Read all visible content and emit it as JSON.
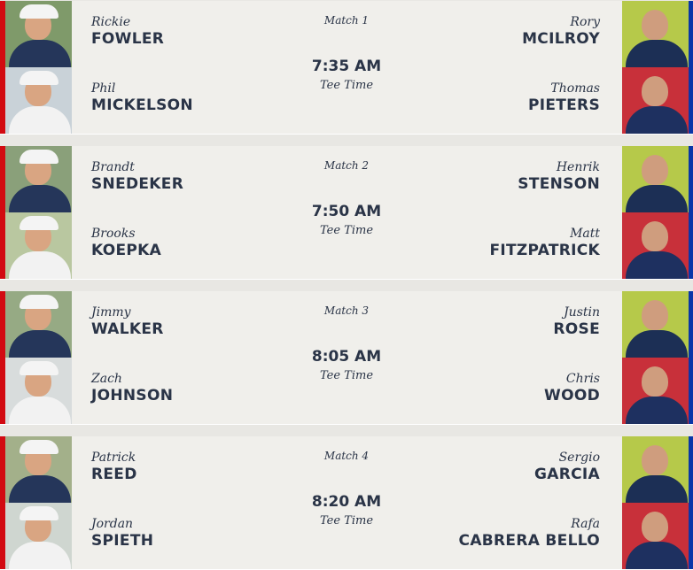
{
  "colors": {
    "usa": "#d20a11",
    "europe": "#0a36a8",
    "card": "#f0efeb",
    "text": "#2a3447"
  },
  "tee_label": "Tee Time",
  "matches": [
    {
      "label": "Match 1",
      "time": "7:35 AM",
      "usa": [
        {
          "first": "Rickie",
          "last": "FOWLER"
        },
        {
          "first": "Phil",
          "last": "MICKELSON"
        }
      ],
      "europe": [
        {
          "first": "Rory",
          "last": "MCILROY"
        },
        {
          "first": "Thomas",
          "last": "PIETERS"
        }
      ]
    },
    {
      "label": "Match 2",
      "time": "7:50 AM",
      "usa": [
        {
          "first": "Brandt",
          "last": "SNEDEKER"
        },
        {
          "first": "Brooks",
          "last": "KOEPKA"
        }
      ],
      "europe": [
        {
          "first": "Henrik",
          "last": "STENSON"
        },
        {
          "first": "Matt",
          "last": "FITZPATRICK"
        }
      ]
    },
    {
      "label": "Match 3",
      "time": "8:05 AM",
      "usa": [
        {
          "first": "Jimmy",
          "last": "WALKER"
        },
        {
          "first": "Zach",
          "last": "JOHNSON"
        }
      ],
      "europe": [
        {
          "first": "Justin",
          "last": "ROSE"
        },
        {
          "first": "Chris",
          "last": "WOOD"
        }
      ]
    },
    {
      "label": "Match 4",
      "time": "8:20 AM",
      "usa": [
        {
          "first": "Patrick",
          "last": "REED"
        },
        {
          "first": "Jordan",
          "last": "SPIETH"
        }
      ],
      "europe": [
        {
          "first": "Sergio",
          "last": "GARCIA"
        },
        {
          "first": "Rafa",
          "last": "CABRERA BELLO"
        }
      ]
    }
  ]
}
